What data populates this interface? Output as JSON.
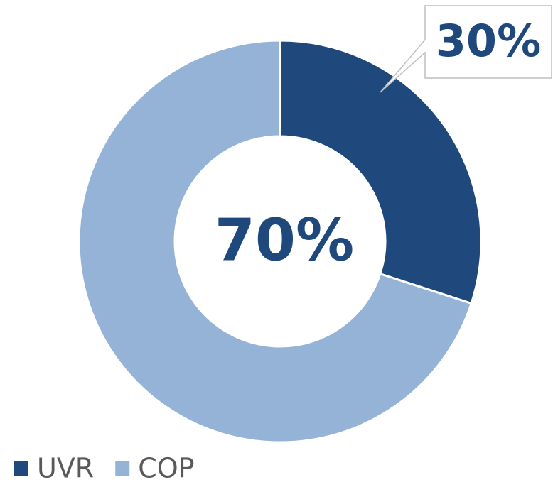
{
  "chart_data": {
    "type": "donut",
    "categories": [
      "UVR",
      "COP"
    ],
    "values": [
      30,
      70
    ],
    "value_labels": [
      "30%",
      "70%"
    ],
    "colors": [
      "#1f497d",
      "#95b3d7"
    ],
    "legend": "bottom-left"
  }
}
